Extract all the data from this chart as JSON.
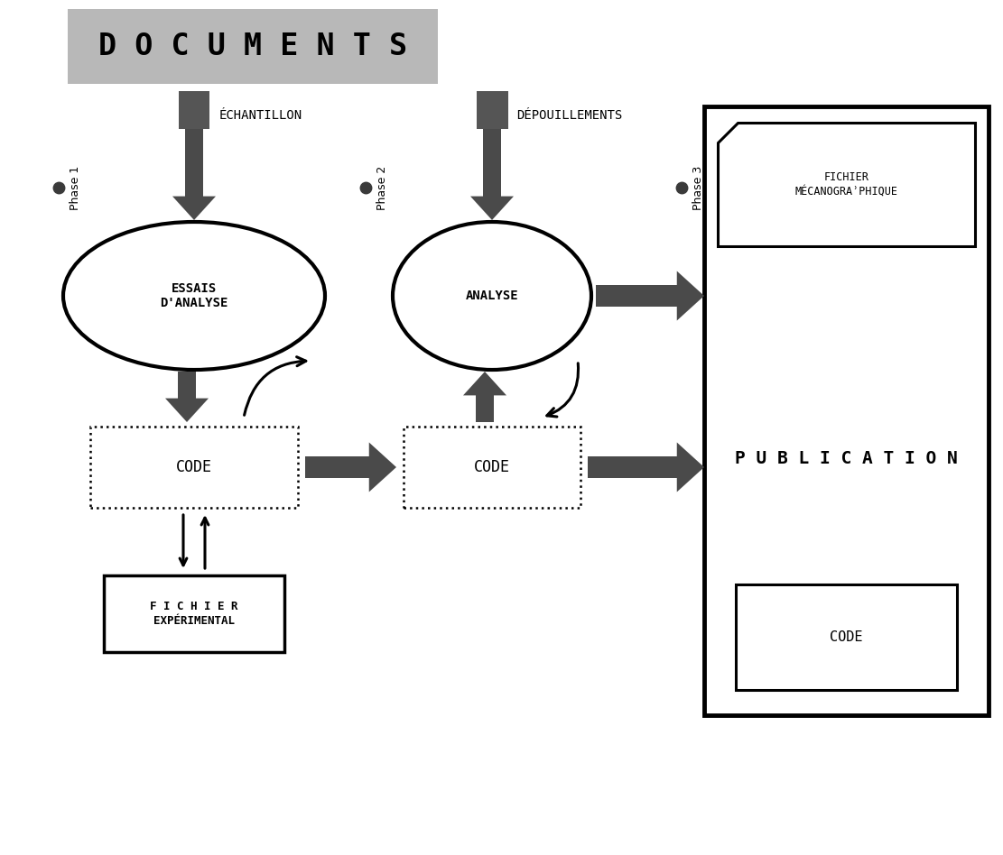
{
  "bg_color": "#ffffff",
  "title_text": "D O C U M E N T S",
  "title_bg": "#b8b8b8",
  "arrow_color": "#4a4a4a",
  "phase_dot_color": "#3a3a3a",
  "echantillon_text": "ÉCHANTILLON",
  "depouillements_text": "DÉPOUILLEMENTS",
  "essais_text": "ESSAIS\nD'ANALYSE",
  "analyse_text": "ANALYSE",
  "code1_text": "CODE",
  "code2_text": "CODE",
  "code3_text": "CODE",
  "fichier_meca_line1": "FICHIER",
  "fichier_meca_line2": "MÉCANOGRAʾPHIQUE",
  "publication_text": "P U B L I C A T I O N",
  "fichier_exp_line1": "F I C H I E R",
  "fichier_exp_line2": "EXPÉRIMENTAL"
}
